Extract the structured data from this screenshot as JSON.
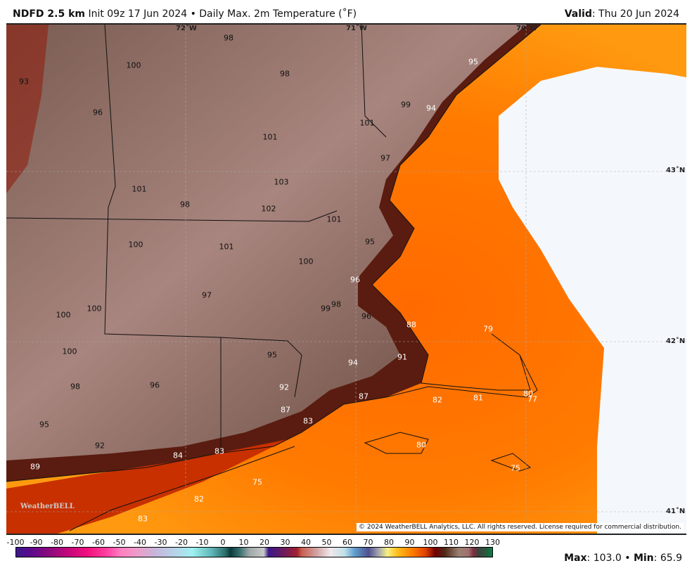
{
  "header": {
    "model": "NDFD 2.5 km",
    "init": "Init 09z 17 Jun 2024",
    "sep": "•",
    "product": "Daily Max. 2m Temperature (˚F)",
    "valid_label": "Valid",
    "valid_value": ": Thu 20 Jun 2024"
  },
  "grid_labels": {
    "lon": [
      "72˚W",
      "71˚W",
      "70˚W"
    ],
    "lat": [
      "43˚N",
      "42˚N",
      "41˚N"
    ]
  },
  "temps": [
    "98",
    "100",
    "98",
    "93",
    "95",
    "96",
    "99",
    "94",
    "101",
    "101",
    "97",
    "101",
    "98",
    "103",
    "102",
    "101",
    "95",
    "100",
    "101",
    "100",
    "96",
    "97",
    "100",
    "100",
    "99",
    "98",
    "96",
    "88",
    "79",
    "100",
    "95",
    "91",
    "94",
    "98",
    "96",
    "92",
    "87",
    "82",
    "81",
    "80",
    "77",
    "87",
    "83",
    "95",
    "92",
    "80",
    "84",
    "83",
    "89",
    "75",
    "75",
    "82",
    "83"
  ],
  "logo": "WeatherBELL",
  "copyright": "© 2024 WeatherBELL Analytics, LLC. All rights reserved. License required for commercial distribution.",
  "colorbar": {
    "ticks": [
      "-100",
      "-90",
      "-80",
      "-70",
      "-60",
      "-50",
      "-40",
      "-30",
      "-20",
      "-10",
      "0",
      "10",
      "20",
      "30",
      "40",
      "50",
      "60",
      "70",
      "80",
      "90",
      "100",
      "110",
      "120",
      "130"
    ],
    "unit": "˚F"
  },
  "stats": {
    "max_label": "Max",
    "max": ": 103.0",
    "sep": " • ",
    "min_label": "Min",
    "min": ": 65.9"
  },
  "colors": {
    "land": "#8e7268",
    "warm_land": "#a88580",
    "sea_near": "#b02000",
    "sea_mid": "#ff5a00",
    "sea_far": "#ffa020",
    "no_data": "#f4f8fd"
  }
}
